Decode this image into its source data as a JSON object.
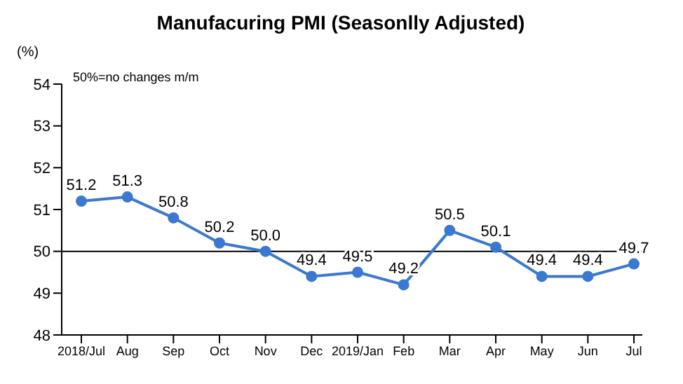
{
  "chart_data": {
    "type": "line",
    "title": "Manufacuring PMI (Seasonlly Adjusted)",
    "ylabel": "(%)",
    "annotations": [
      "50%=no changes  m/m"
    ],
    "categories": [
      "2018/Jul",
      "Aug",
      "Sep",
      "Oct",
      "Nov",
      "Dec",
      "2019/Jan",
      "Feb",
      "Mar",
      "Apr",
      "May",
      "Jun",
      "Jul"
    ],
    "series": [
      {
        "color": "#3b78d0",
        "values": [
          51.2,
          51.3,
          50.8,
          50.2,
          50.0,
          49.4,
          49.5,
          49.2,
          50.5,
          50.1,
          49.4,
          49.4,
          49.7
        ],
        "value_labels": [
          "51.2",
          "51.3",
          "50.8",
          "50.2",
          "50.0",
          "49.4",
          "49.5",
          "49.2",
          "50.5",
          "50.1",
          "49.4",
          "49.4",
          "49.7"
        ]
      }
    ],
    "ylim": [
      48,
      54
    ],
    "yticks": [
      48,
      49,
      50,
      51,
      52,
      53,
      54
    ],
    "ref_lines": [
      {
        "axis": "y",
        "value": 50,
        "color": "#000000"
      }
    ],
    "marker": "circle",
    "line_style": "solid"
  }
}
